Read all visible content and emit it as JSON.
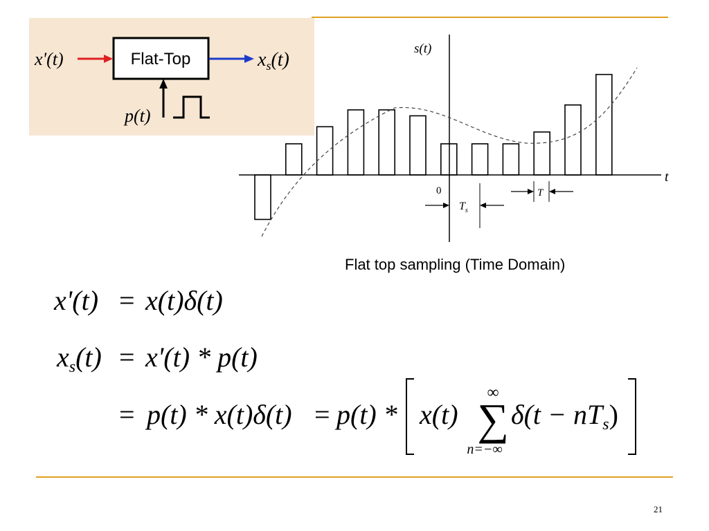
{
  "block_diagram": {
    "input_label": "x'(t)",
    "block_label": "Flat-Top",
    "output_label_main": "x",
    "output_label_sub": "s",
    "output_label_arg": "(t)",
    "pulse_label": "p(t)",
    "colors": {
      "input_arrow": "#e02020",
      "output_arrow": "#1c3ccc",
      "panel": "#f6e6d2"
    }
  },
  "waveform": {
    "y_axis_label": "s(t)",
    "x_axis_label": "t",
    "origin_label": "0",
    "ts_label_main": "T",
    "ts_label_sub": "s",
    "t_label": "T",
    "caption": "Flat top sampling (Time Domain)",
    "pulse_values": [
      -1.43,
      1.0,
      1.55,
      2.09,
      2.09,
      1.9,
      1.0,
      1.0,
      1.0,
      1.38,
      2.25,
      3.23
    ]
  },
  "equations": {
    "eq1": {
      "lhs": "x'(t)",
      "equals": "=",
      "rhs": "x(t)δ(t)"
    },
    "eq2": {
      "lhs_main": "x",
      "lhs_sub": "s",
      "lhs_arg": "(t)",
      "equals": "=",
      "rhs": "x'(t) * p(t)"
    },
    "eq3": {
      "equals": "=",
      "part1": "p(t) * x(t)δ(t)",
      "equals2": "=",
      "part2": "p(t) *",
      "bracket_inner_left": "x(t)",
      "sum_top": "∞",
      "sum_symbol": "∑",
      "sum_bottom": "n=−∞",
      "delta_term": "δ(t − nT",
      "delta_sub": "s",
      "delta_close": ")"
    }
  },
  "footer": {
    "page_number": "21"
  }
}
